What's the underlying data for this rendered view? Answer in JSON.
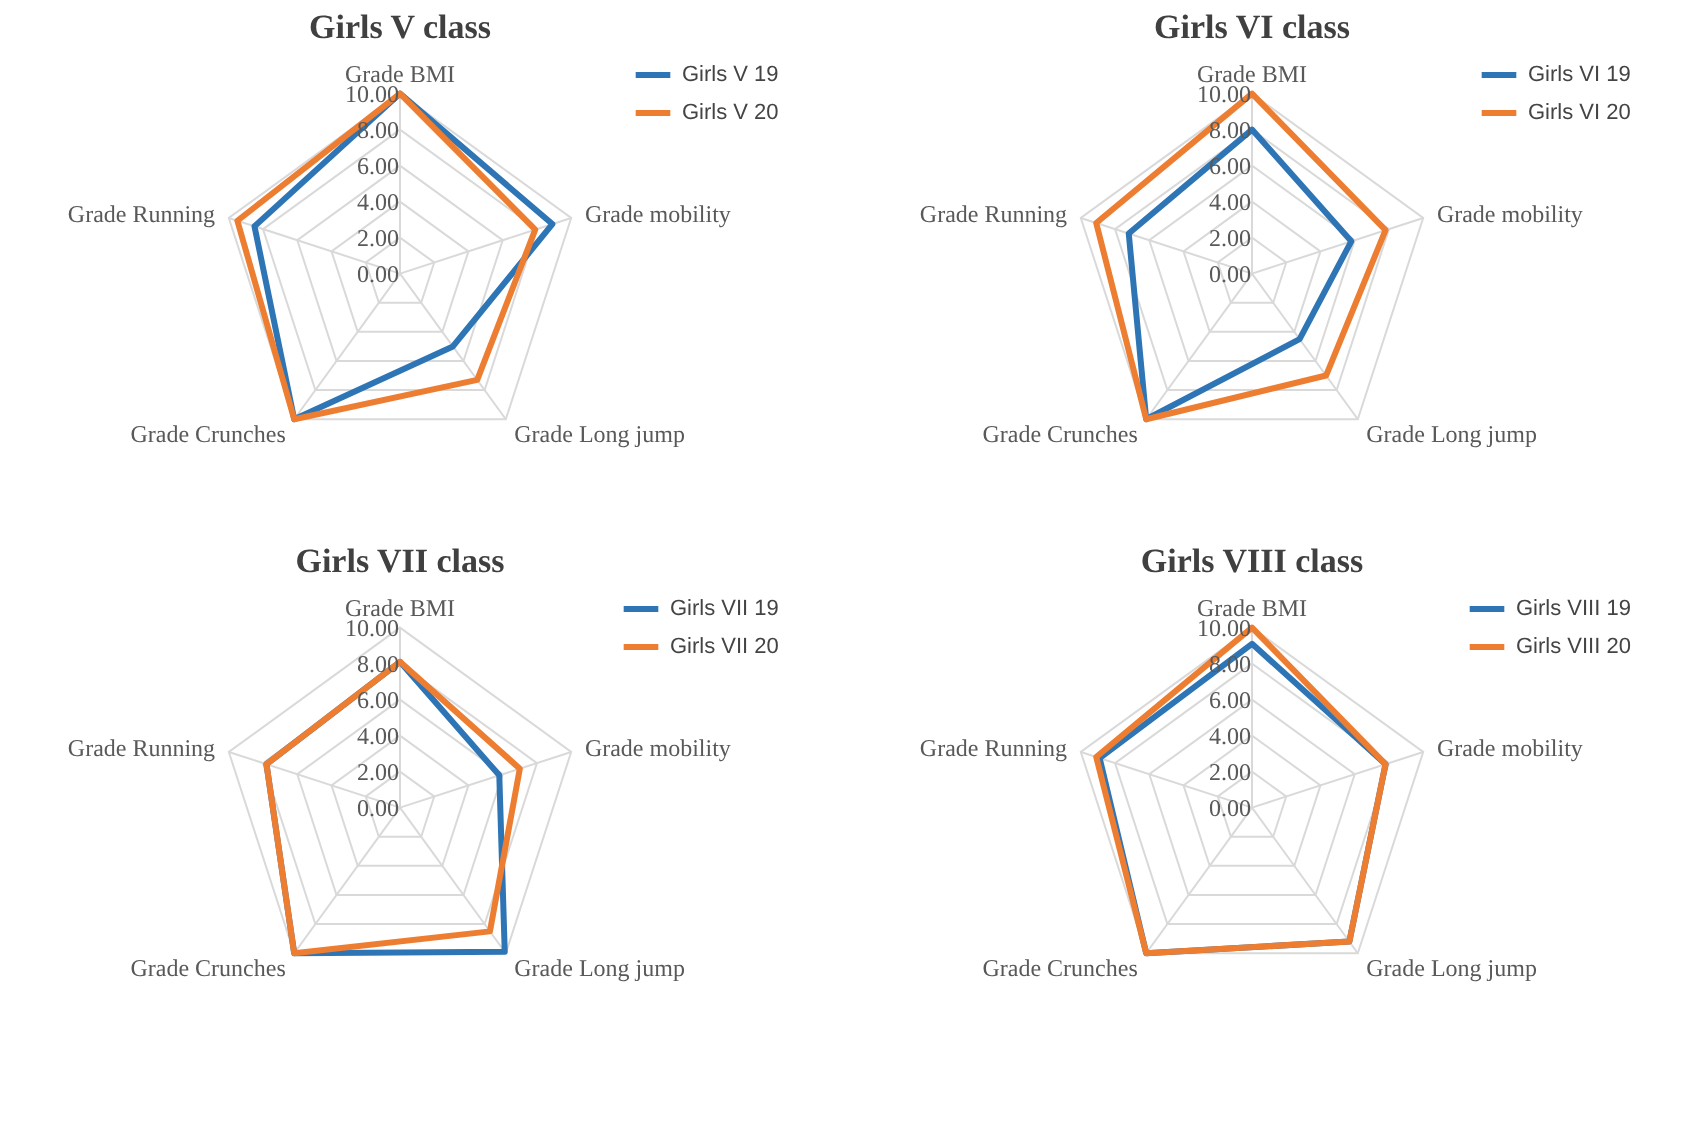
{
  "chart_data": [
    {
      "type": "radar",
      "title": "Girls V class",
      "categories": [
        "Grade BMI",
        "Grade mobility",
        "Grade Long jump",
        "Grade Crunches",
        "Grade Running"
      ],
      "ylim": [
        0,
        10
      ],
      "yticks": [
        {
          "value": 0,
          "label": "0.00"
        },
        {
          "value": 2,
          "label": "2.00"
        },
        {
          "value": 4,
          "label": "4.00"
        },
        {
          "value": 6,
          "label": "6.00"
        },
        {
          "value": 8,
          "label": "8.00"
        },
        {
          "value": 10,
          "label": "10.00"
        }
      ],
      "grid": true,
      "legend": "top right",
      "line_style": "solid",
      "marker": "none",
      "series": [
        {
          "name": "Girls V 19",
          "color": "#2e75b6",
          "values": [
            10,
            8.9,
            5.0,
            10,
            8.5
          ]
        },
        {
          "name": "Girls V 20",
          "color": "#ed7d31",
          "values": [
            10,
            7.9,
            7.3,
            10,
            9.5
          ]
        }
      ]
    },
    {
      "type": "radar",
      "title": "Girls VI class",
      "categories": [
        "Grade BMI",
        "Grade mobility",
        "Grade Long jump",
        "Grade Crunches",
        "Grade Running"
      ],
      "ylim": [
        0,
        10
      ],
      "yticks": [
        {
          "value": 0,
          "label": "0.00"
        },
        {
          "value": 2,
          "label": "2.00"
        },
        {
          "value": 4,
          "label": "4.00"
        },
        {
          "value": 6,
          "label": "6.00"
        },
        {
          "value": 8,
          "label": "8.00"
        },
        {
          "value": 10,
          "label": "10.00"
        }
      ],
      "grid": true,
      "legend": "top right",
      "line_style": "solid",
      "marker": "none",
      "series": [
        {
          "name": "Girls VI 19",
          "color": "#2e75b6",
          "values": [
            8.0,
            5.8,
            4.5,
            10,
            7.2
          ]
        },
        {
          "name": "Girls VI 20",
          "color": "#ed7d31",
          "values": [
            10,
            7.8,
            7.0,
            10,
            9.1
          ]
        }
      ]
    },
    {
      "type": "radar",
      "title": "Girls VII class",
      "categories": [
        "Grade BMI",
        "Grade mobility",
        "Grade Long jump",
        "Grade Crunches",
        "Grade Running"
      ],
      "ylim": [
        0,
        10
      ],
      "yticks": [
        {
          "value": 0,
          "label": "0.00"
        },
        {
          "value": 2,
          "label": "2.00"
        },
        {
          "value": 4,
          "label": "4.00"
        },
        {
          "value": 6,
          "label": "6.00"
        },
        {
          "value": 8,
          "label": "8.00"
        },
        {
          "value": 10,
          "label": "10.00"
        }
      ],
      "grid": true,
      "legend": "top right",
      "line_style": "solid",
      "marker": "none",
      "series": [
        {
          "name": "Girls VII 19",
          "color": "#2e75b6",
          "values": [
            8.1,
            5.8,
            9.9,
            10,
            7.8
          ]
        },
        {
          "name": "Girls VII 20",
          "color": "#ed7d31",
          "values": [
            8.1,
            7.0,
            8.5,
            10,
            7.8
          ]
        }
      ]
    },
    {
      "type": "radar",
      "title": "Girls VIII class",
      "categories": [
        "Grade BMI",
        "Grade mobility",
        "Grade Long jump",
        "Grade Crunches",
        "Grade Running"
      ],
      "ylim": [
        0,
        10
      ],
      "yticks": [
        {
          "value": 0,
          "label": "0.00"
        },
        {
          "value": 2,
          "label": "2.00"
        },
        {
          "value": 4,
          "label": "4.00"
        },
        {
          "value": 6,
          "label": "6.00"
        },
        {
          "value": 8,
          "label": "8.00"
        },
        {
          "value": 10,
          "label": "10.00"
        }
      ],
      "grid": true,
      "legend": "top right",
      "line_style": "solid",
      "marker": "none",
      "series": [
        {
          "name": "Girls VIII 19",
          "color": "#2e75b6",
          "values": [
            9.1,
            7.8,
            9.2,
            10,
            8.9
          ]
        },
        {
          "name": "Girls VIII 20",
          "color": "#ed7d31",
          "values": [
            10,
            7.8,
            9.2,
            10,
            9.1
          ]
        }
      ]
    }
  ]
}
